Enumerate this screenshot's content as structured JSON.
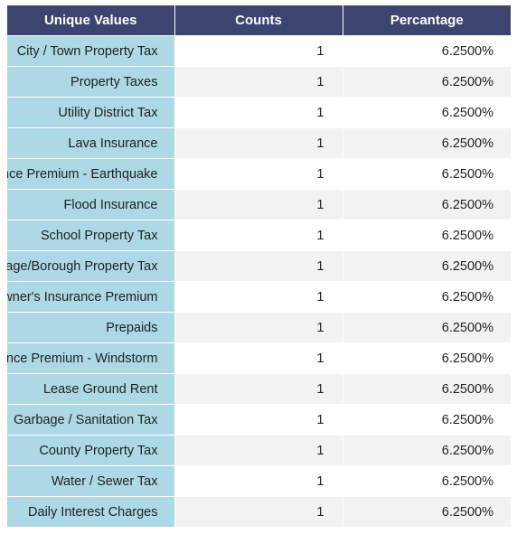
{
  "table": {
    "headers": [
      "Unique Values",
      "Counts",
      "Percantage"
    ],
    "rows": [
      {
        "value": "City / Town Property Tax",
        "count": "1",
        "pct": "6.2500%"
      },
      {
        "value": "Property Taxes",
        "count": "1",
        "pct": "6.2500%"
      },
      {
        "value": "Utility District Tax",
        "count": "1",
        "pct": "6.2500%"
      },
      {
        "value": "Lava Insurance",
        "count": "1",
        "pct": "6.2500%"
      },
      {
        "value": "Insurance Premium - Earthquake",
        "count": "1",
        "pct": "6.2500%"
      },
      {
        "value": "Flood Insurance",
        "count": "1",
        "pct": "6.2500%"
      },
      {
        "value": "School Property Tax",
        "count": "1",
        "pct": "6.2500%"
      },
      {
        "value": "Village/Borough Property Tax",
        "count": "1",
        "pct": "6.2500%"
      },
      {
        "value": "Homeowner's Insurance Premium",
        "count": "1",
        "pct": "6.2500%"
      },
      {
        "value": "Prepaids",
        "count": "1",
        "pct": "6.2500%"
      },
      {
        "value": "Insurance Premium - Windstorm",
        "count": "1",
        "pct": "6.2500%"
      },
      {
        "value": "Lease Ground Rent",
        "count": "1",
        "pct": "6.2500%"
      },
      {
        "value": "Garbage / Sanitation Tax",
        "count": "1",
        "pct": "6.2500%"
      },
      {
        "value": "County Property Tax",
        "count": "1",
        "pct": "6.2500%"
      },
      {
        "value": "Water / Sewer Tax",
        "count": "1",
        "pct": "6.2500%"
      },
      {
        "value": "Daily Interest Charges",
        "count": "1",
        "pct": "6.2500%"
      }
    ]
  },
  "colors": {
    "header_bg": "#3e4470",
    "name_col_bg": "#add8e6",
    "stripe_bg": "#f2f2f2"
  }
}
